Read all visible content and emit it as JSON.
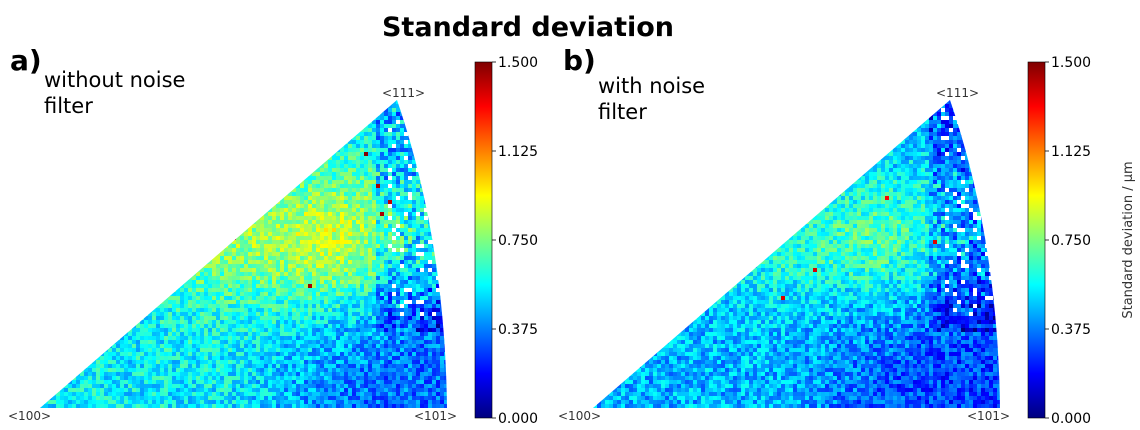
{
  "figure": {
    "title": "Standard deviation"
  },
  "colormap": {
    "name": "jet",
    "stops": [
      "#00007f",
      "#0000ff",
      "#007fff",
      "#00ffff",
      "#7fff7f",
      "#ffff00",
      "#ff7f00",
      "#ff0000",
      "#7f0000"
    ]
  },
  "chart_data": [
    {
      "type": "heatmap",
      "panel_label": "a)",
      "subtitle_lines": [
        "without noise",
        "filter"
      ],
      "corner_labels": {
        "bottom_left": "<100>",
        "bottom_right": "<101>",
        "top": "<111>"
      },
      "colorbar": {
        "ticks": [
          "0.000",
          "0.375",
          "0.750",
          "1.125",
          "1.500"
        ],
        "range": [
          0,
          1.5
        ],
        "label": ""
      },
      "value_field": {
        "description_levels": {
          "base": 0.55,
          "low_region": 0.35,
          "high_region": 0.95,
          "hotspot": 1.4
        }
      }
    },
    {
      "type": "heatmap",
      "panel_label": "b)",
      "subtitle_lines": [
        "with noise",
        "filter"
      ],
      "corner_labels": {
        "bottom_left": "<100>",
        "bottom_right": "<101>",
        "top": "<111>"
      },
      "colorbar": {
        "ticks": [
          "0.000",
          "0.375",
          "0.750",
          "1.125",
          "1.500"
        ],
        "range": [
          0,
          1.5
        ],
        "label": "Standard deviation / µm"
      },
      "value_field": {
        "description_levels": {
          "base": 0.45,
          "low_region": 0.28,
          "high_region": 0.75,
          "hotspot": 1.3
        }
      }
    }
  ]
}
